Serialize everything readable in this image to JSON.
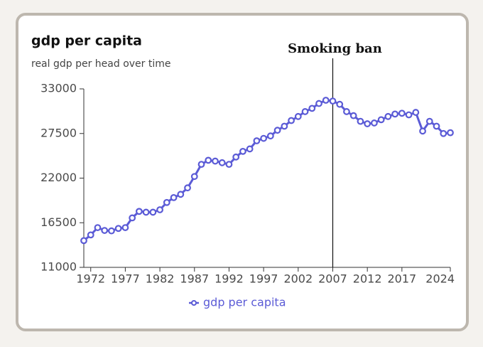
{
  "chart_data": {
    "type": "line",
    "title": "gdp per capita",
    "subtitle": "real gdp per head over time",
    "annotation": {
      "text": "Smoking ban",
      "x": 2007
    },
    "x": [
      1971,
      1972,
      1973,
      1974,
      1975,
      1976,
      1977,
      1978,
      1979,
      1980,
      1981,
      1982,
      1983,
      1984,
      1985,
      1986,
      1987,
      1988,
      1989,
      1990,
      1991,
      1992,
      1993,
      1994,
      1995,
      1996,
      1997,
      1998,
      1999,
      2000,
      2001,
      2002,
      2003,
      2004,
      2005,
      2006,
      2007,
      2008,
      2009,
      2010,
      2011,
      2012,
      2013,
      2014,
      2015,
      2016,
      2017,
      2018,
      2019,
      2020,
      2021,
      2022,
      2023,
      2024
    ],
    "series": [
      {
        "name": "gdp per capita",
        "color": "#5b5bd6",
        "values": [
          14300,
          15000,
          15900,
          15550,
          15500,
          15800,
          15900,
          17100,
          17900,
          17800,
          17800,
          18100,
          19000,
          19600,
          20000,
          20800,
          22200,
          23700,
          24200,
          24100,
          23900,
          23700,
          24600,
          25300,
          25600,
          26600,
          26900,
          27200,
          27900,
          28400,
          29100,
          29600,
          30200,
          30600,
          31200,
          31600,
          31500,
          31100,
          30200,
          29700,
          29000,
          28700,
          28800,
          29200,
          29600,
          29900,
          30000,
          29800,
          30100,
          27800,
          29000,
          28400,
          27500,
          27600
        ]
      }
    ],
    "xlim": [
      1971,
      2024
    ],
    "xticks": [
      1972,
      1977,
      1982,
      1987,
      1992,
      1997,
      2002,
      2007,
      2012,
      2017,
      2024
    ],
    "ylim": [
      11000,
      33000
    ],
    "yticks": [
      11000,
      16500,
      22000,
      27500,
      33000
    ],
    "legend": "bottom"
  }
}
